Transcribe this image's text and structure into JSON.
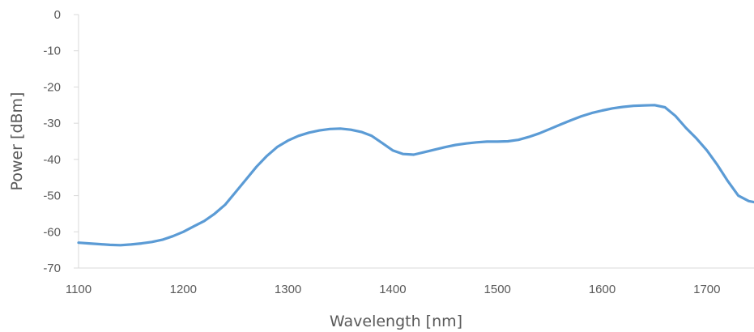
{
  "chart_data": {
    "type": "line",
    "title": "",
    "xlabel": "Wavelength [nm]",
    "ylabel": "Power [dBm]",
    "xlim": [
      1100,
      1745
    ],
    "ylim": [
      -70,
      0
    ],
    "x_ticks": [
      1100,
      1200,
      1300,
      1400,
      1500,
      1600,
      1700
    ],
    "y_ticks": [
      0,
      -10,
      -20,
      -30,
      -40,
      -50,
      -60,
      -70
    ],
    "grid": false,
    "legend": "none",
    "colors": {
      "series": "#5b9bd5",
      "axis": "#d9d9d9",
      "text": "#595959"
    },
    "series": [
      {
        "x": [
          1100,
          1110,
          1120,
          1130,
          1140,
          1150,
          1160,
          1170,
          1180,
          1190,
          1200,
          1210,
          1220,
          1230,
          1240,
          1250,
          1260,
          1270,
          1280,
          1290,
          1300,
          1310,
          1320,
          1330,
          1340,
          1350,
          1360,
          1370,
          1380,
          1390,
          1400,
          1410,
          1420,
          1430,
          1440,
          1450,
          1460,
          1470,
          1480,
          1490,
          1500,
          1510,
          1520,
          1530,
          1540,
          1550,
          1560,
          1570,
          1580,
          1590,
          1600,
          1610,
          1620,
          1630,
          1640,
          1650,
          1660,
          1670,
          1680,
          1690,
          1700,
          1710,
          1720,
          1730,
          1740,
          1745
        ],
        "y": [
          -63,
          -63.2,
          -63.4,
          -63.6,
          -63.7,
          -63.5,
          -63.2,
          -62.8,
          -62.2,
          -61.2,
          -60,
          -58.5,
          -57,
          -55,
          -52.5,
          -49,
          -45.5,
          -42,
          -39,
          -36.5,
          -34.8,
          -33.5,
          -32.6,
          -32,
          -31.6,
          -31.5,
          -31.8,
          -32.4,
          -33.5,
          -35.5,
          -37.5,
          -38.5,
          -38.7,
          -38,
          -37.3,
          -36.6,
          -36,
          -35.6,
          -35.3,
          -35.1,
          -35.1,
          -35,
          -34.6,
          -33.8,
          -32.8,
          -31.6,
          -30.4,
          -29.2,
          -28.1,
          -27.2,
          -26.5,
          -25.9,
          -25.5,
          -25.2,
          -25.1,
          -25,
          -25.6,
          -28,
          -31.3,
          -34.2,
          -37.5,
          -41.5,
          -46,
          -50,
          -51.5,
          -51.8
        ]
      }
    ]
  }
}
